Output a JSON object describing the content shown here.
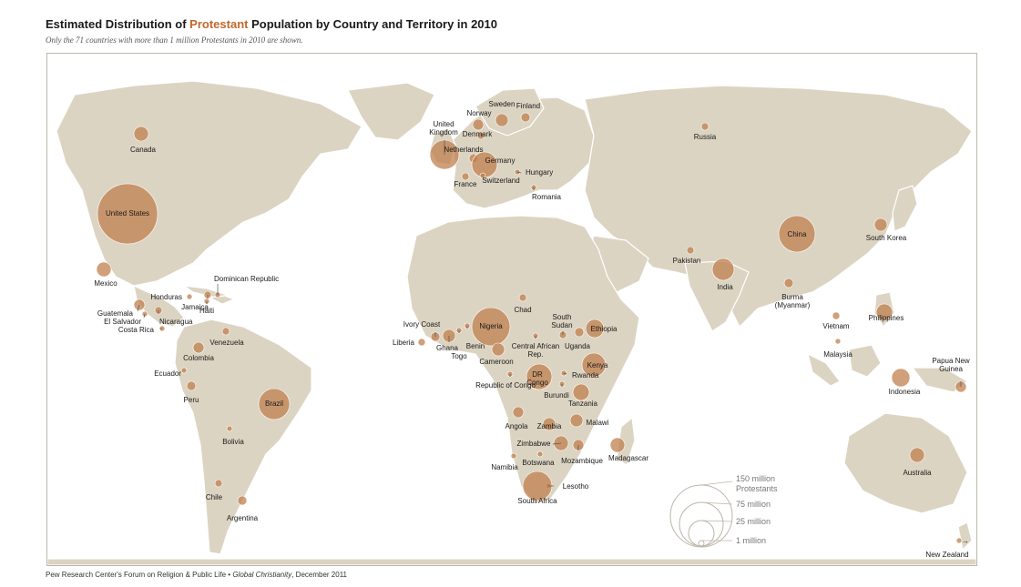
{
  "title": {
    "part1": "Estimated Distribution of ",
    "highlight": "Protestant",
    "part2": " Population by Country and Territory in 2010",
    "highlight_color": "#c0692c"
  },
  "subtitle": "Only the 71 countries with more than 1 million Protestants in 2010 are shown.",
  "footer": {
    "source": "Pew Research Center's Forum on Religion & Public Life • ",
    "publication": "Global Christianity",
    "date": ", December 2011"
  },
  "colors": {
    "land": "#dcd4c2",
    "bubble": "#c0804f",
    "border": "#ffffff"
  },
  "legend": {
    "items": [
      {
        "label": "150 million",
        "sub": "Protestants",
        "value_millions": 150
      },
      {
        "label": "75 million",
        "value_millions": 75
      },
      {
        "label": "25 million",
        "value_millions": 25
      },
      {
        "label": "1 million",
        "value_millions": 1
      }
    ]
  },
  "countries": [
    {
      "name": "United States"
    },
    {
      "name": "Canada"
    },
    {
      "name": "Mexico"
    },
    {
      "name": "Dominican Republic"
    },
    {
      "name": "Honduras"
    },
    {
      "name": "Jamaica"
    },
    {
      "name": "Haiti"
    },
    {
      "name": "Guatemala"
    },
    {
      "name": "El Salvador"
    },
    {
      "name": "Nicaragua"
    },
    {
      "name": "Costa Rica"
    },
    {
      "name": "Venezuela"
    },
    {
      "name": "Colombia"
    },
    {
      "name": "Ecuador"
    },
    {
      "name": "Peru"
    },
    {
      "name": "Brazil"
    },
    {
      "name": "Bolivia"
    },
    {
      "name": "Chile"
    },
    {
      "name": "Argentina"
    },
    {
      "name": "United Kingdom"
    },
    {
      "name": "Norway"
    },
    {
      "name": "Sweden"
    },
    {
      "name": "Finland"
    },
    {
      "name": "Denmark"
    },
    {
      "name": "Netherlands"
    },
    {
      "name": "Germany"
    },
    {
      "name": "Hungary"
    },
    {
      "name": "France"
    },
    {
      "name": "Switzerland"
    },
    {
      "name": "Romania"
    },
    {
      "name": "Russia"
    },
    {
      "name": "Chad"
    },
    {
      "name": "South Sudan"
    },
    {
      "name": "Ethiopia"
    },
    {
      "name": "Ivory Coast"
    },
    {
      "name": "Nigeria"
    },
    {
      "name": "Liberia"
    },
    {
      "name": "Ghana"
    },
    {
      "name": "Benin"
    },
    {
      "name": "Togo"
    },
    {
      "name": "Central African Rep."
    },
    {
      "name": "Cameroon"
    },
    {
      "name": "Uganda"
    },
    {
      "name": "Kenya"
    },
    {
      "name": "DR Congo"
    },
    {
      "name": "Rwanda"
    },
    {
      "name": "Republic of Congo"
    },
    {
      "name": "Burundi"
    },
    {
      "name": "Tanzania"
    },
    {
      "name": "Malawi"
    },
    {
      "name": "Angola"
    },
    {
      "name": "Zambia"
    },
    {
      "name": "Zimbabwe"
    },
    {
      "name": "Mozambique"
    },
    {
      "name": "Madagascar"
    },
    {
      "name": "Namibia"
    },
    {
      "name": "Botswana"
    },
    {
      "name": "Lesotho"
    },
    {
      "name": "South Africa"
    },
    {
      "name": "Pakistan"
    },
    {
      "name": "India"
    },
    {
      "name": "China"
    },
    {
      "name": "South Korea"
    },
    {
      "name": "Burma (Myanmar)"
    },
    {
      "name": "Vietnam"
    },
    {
      "name": "Philippines"
    },
    {
      "name": "Malaysia"
    },
    {
      "name": "Indonesia"
    },
    {
      "name": "Papua New Guinea"
    },
    {
      "name": "Australia"
    },
    {
      "name": "New Zealand"
    }
  ]
}
